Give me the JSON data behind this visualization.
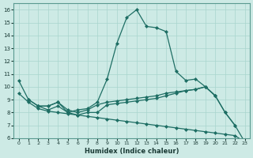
{
  "xlabel": "Humidex (Indice chaleur)",
  "bg_color": "#cdeae5",
  "grid_color": "#a8d5ce",
  "line_color": "#1e6e64",
  "xlim": [
    -0.5,
    23.5
  ],
  "ylim": [
    6,
    16.5
  ],
  "yticks": [
    6,
    7,
    8,
    9,
    10,
    11,
    12,
    13,
    14,
    15,
    16
  ],
  "xticks": [
    0,
    1,
    2,
    3,
    4,
    5,
    6,
    7,
    8,
    9,
    10,
    11,
    12,
    13,
    14,
    15,
    16,
    17,
    18,
    19,
    20,
    21,
    22,
    23
  ],
  "series": [
    {
      "x": [
        0,
        1,
        2,
        3,
        4,
        5,
        6,
        7,
        8,
        9,
        10,
        11,
        12,
        13,
        14,
        15,
        16,
        17,
        18,
        19,
        20
      ],
      "y": [
        10.5,
        9.0,
        8.5,
        8.5,
        8.8,
        8.0,
        8.2,
        8.3,
        8.8,
        10.6,
        13.4,
        15.4,
        16.0,
        14.7,
        14.6,
        14.3,
        11.2,
        10.5,
        10.6,
        10.0,
        9.3
      ]
    },
    {
      "x": [
        1,
        2,
        3,
        4,
        5,
        6,
        7,
        8,
        9,
        10,
        11,
        12,
        13,
        14,
        15,
        16,
        17,
        18,
        19,
        20,
        21,
        22
      ],
      "y": [
        9.0,
        8.5,
        8.5,
        8.8,
        8.2,
        8.0,
        8.2,
        8.6,
        8.8,
        8.9,
        9.0,
        9.1,
        9.2,
        9.3,
        9.5,
        9.6,
        9.7,
        9.8,
        10.0,
        9.3,
        8.0,
        7.0
      ]
    },
    {
      "x": [
        2,
        3,
        4,
        5,
        6,
        7,
        8,
        9,
        10,
        11,
        12,
        13,
        14,
        15,
        16,
        17,
        18,
        19,
        20,
        21,
        22,
        23
      ],
      "y": [
        8.5,
        8.2,
        8.5,
        8.0,
        7.8,
        8.0,
        8.0,
        8.6,
        8.7,
        8.8,
        8.9,
        9.0,
        9.1,
        9.3,
        9.5,
        9.7,
        9.8,
        10.0,
        9.3,
        8.0,
        7.0,
        5.7
      ]
    },
    {
      "x": [
        0,
        1,
        2,
        3,
        4,
        5,
        6,
        7,
        8,
        9,
        10,
        11,
        12,
        13,
        14,
        15,
        16,
        17,
        18,
        19,
        20,
        21,
        22,
        23
      ],
      "y": [
        9.5,
        8.8,
        8.3,
        8.1,
        8.0,
        7.9,
        7.8,
        7.7,
        7.6,
        7.5,
        7.4,
        7.3,
        7.2,
        7.1,
        7.0,
        6.9,
        6.8,
        6.7,
        6.6,
        6.5,
        6.4,
        6.3,
        6.2,
        5.7
      ]
    }
  ]
}
